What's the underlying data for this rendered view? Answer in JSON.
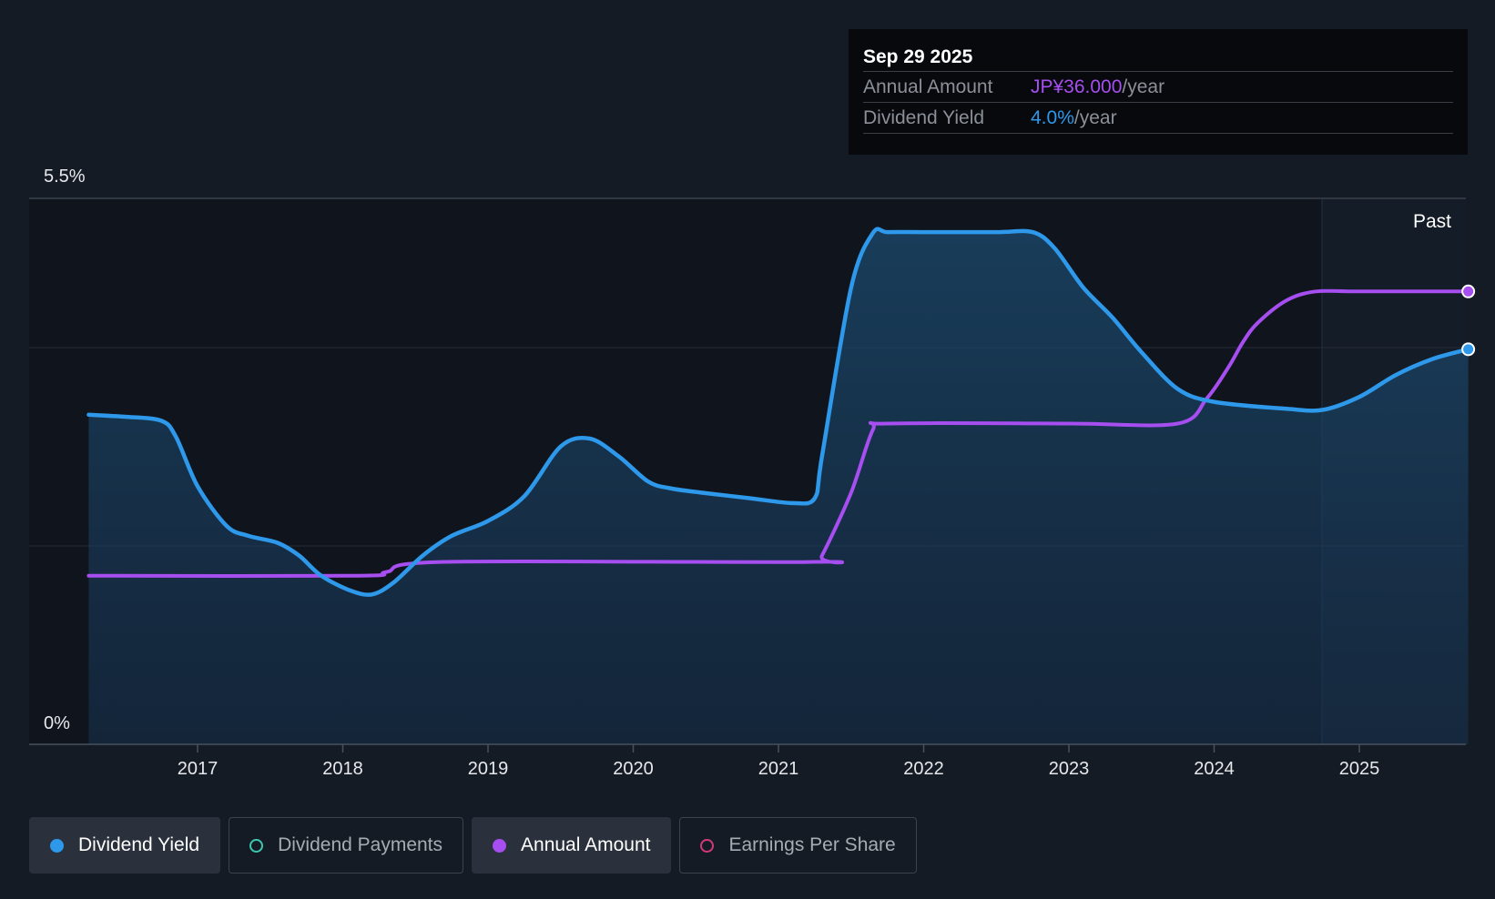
{
  "chart_data": {
    "type": "line",
    "title": "",
    "y_axis": {
      "top_label": "5.5%",
      "bottom_label": "0%",
      "range": [
        0,
        5.5
      ]
    },
    "x_ticks": [
      "2017",
      "2018",
      "2019",
      "2020",
      "2021",
      "2022",
      "2023",
      "2024",
      "2025"
    ],
    "x_range": [
      2016.25,
      2025.75
    ],
    "past_label": "Past",
    "series": [
      {
        "name": "Dividend Yield",
        "color": "#2e98ea",
        "unit": "%",
        "x": [
          2016.25,
          2016.5,
          2016.75,
          2016.85,
          2017.0,
          2017.2,
          2017.35,
          2017.55,
          2017.7,
          2017.85,
          2018.05,
          2018.2,
          2018.35,
          2018.55,
          2018.75,
          2019.0,
          2019.25,
          2019.5,
          2019.7,
          2019.9,
          2020.1,
          2020.25,
          2020.5,
          2020.8,
          2021.1,
          2021.25,
          2021.3,
          2021.5,
          2021.65,
          2021.75,
          2022.0,
          2022.5,
          2022.75,
          2022.9,
          2023.1,
          2023.3,
          2023.5,
          2023.75,
          2024.0,
          2024.5,
          2024.75,
          2025.0,
          2025.25,
          2025.5,
          2025.75
        ],
        "y": [
          3.32,
          3.3,
          3.26,
          3.1,
          2.6,
          2.2,
          2.1,
          2.03,
          1.9,
          1.7,
          1.55,
          1.51,
          1.63,
          1.9,
          2.1,
          2.25,
          2.5,
          3.0,
          3.08,
          2.9,
          2.65,
          2.58,
          2.53,
          2.48,
          2.43,
          2.48,
          2.9,
          4.6,
          5.15,
          5.16,
          5.16,
          5.16,
          5.16,
          5.0,
          4.6,
          4.3,
          3.95,
          3.58,
          3.45,
          3.38,
          3.37,
          3.5,
          3.72,
          3.88,
          3.98
        ]
      },
      {
        "name": "Annual Amount",
        "color": "#a64ef0",
        "unit": "JP¥",
        "x": [
          2016.25,
          2018.1,
          2018.3,
          2018.7,
          2021.25,
          2021.3,
          2021.5,
          2021.65,
          2021.75,
          2023.0,
          2023.75,
          2023.95,
          2024.1,
          2024.2,
          2024.3,
          2024.5,
          2024.7,
          2025.0,
          2025.75
        ],
        "y": [
          13.4,
          13.4,
          13.7,
          14.5,
          14.5,
          15.0,
          20.0,
          25.0,
          25.5,
          25.5,
          25.5,
          27.5,
          30.0,
          32.0,
          33.5,
          35.3,
          36.0,
          36.0,
          36.0
        ],
        "annual_amount_range": [
          0,
          43.4
        ]
      }
    ],
    "legend": [
      {
        "label": "Dividend Yield",
        "color": "#2e98ea",
        "state": "active"
      },
      {
        "label": "Dividend Payments",
        "color": "#3ec7b0",
        "state": "inactive"
      },
      {
        "label": "Annual Amount",
        "color": "#a64ef0",
        "state": "active"
      },
      {
        "label": "Earnings Per Share",
        "color": "#d03a78",
        "state": "inactive"
      }
    ]
  },
  "tooltip": {
    "date": "Sep 29 2025",
    "rows": [
      {
        "name": "Annual Amount",
        "value": "JP¥36.000",
        "unit": "/year"
      },
      {
        "name": "Dividend Yield",
        "value": "4.0%",
        "unit": "/year"
      }
    ]
  }
}
